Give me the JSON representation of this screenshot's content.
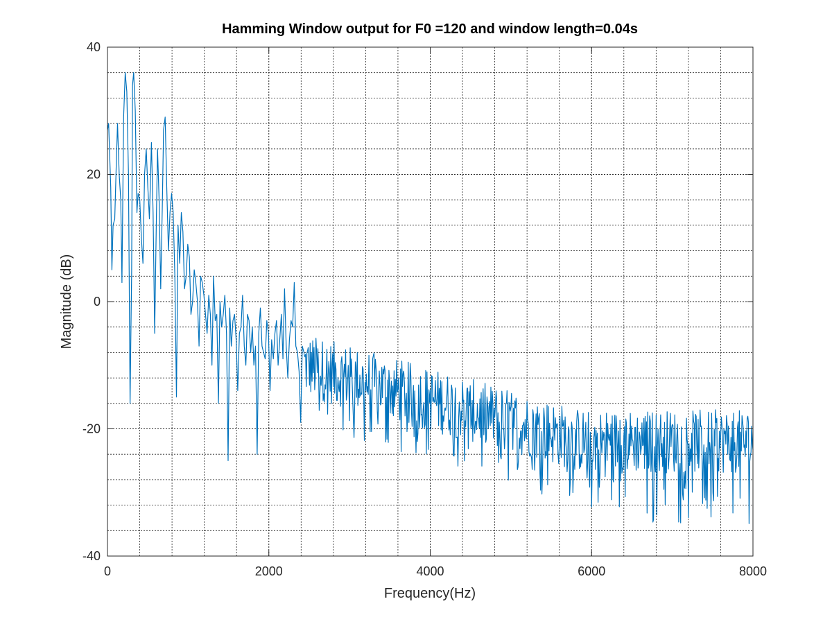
{
  "chart_data": {
    "type": "line",
    "title": "Hamming Window output for F0 =120 and window length=0.04s",
    "xlabel": "Frequency(Hz)",
    "ylabel": "Magnitude (dB)",
    "xlim": [
      0,
      8000
    ],
    "ylim": [
      -40,
      40
    ],
    "x_major_ticks": [
      0,
      2000,
      4000,
      6000,
      8000
    ],
    "x_major_tick_labels": [
      "0",
      "2000",
      "4000",
      "6000",
      "8000"
    ],
    "y_major_ticks": [
      -40,
      -20,
      0,
      20,
      40
    ],
    "y_major_tick_labels": [
      "-40",
      "-20",
      "0",
      "20",
      "40"
    ],
    "x_minor_step": 400,
    "y_minor_step": 4,
    "grid": true,
    "legend": "none",
    "series": [
      {
        "color": "#0072BD",
        "x": [
          0,
          15,
          40,
          55,
          70,
          90,
          110,
          125,
          145,
          165,
          180,
          200,
          220,
          240,
          260,
          280,
          300,
          310,
          325,
          345,
          365,
          380,
          400,
          420,
          440,
          460,
          480,
          500,
          520,
          545,
          565,
          585,
          605,
          620,
          640,
          660,
          680,
          695,
          715,
          735,
          755,
          775,
          795,
          815,
          835,
          855,
          875,
          895,
          915,
          935,
          955,
          975,
          995,
          1015,
          1035,
          1055,
          1075,
          1095,
          1115,
          1135,
          1155,
          1175,
          1195,
          1215,
          1235,
          1255,
          1275,
          1295,
          1315,
          1335,
          1355,
          1375,
          1395,
          1415,
          1435,
          1455,
          1475,
          1495,
          1515,
          1535,
          1555,
          1575,
          1595,
          1615,
          1635,
          1655,
          1675,
          1695,
          1715,
          1735,
          1755,
          1775,
          1795,
          1815,
          1835,
          1855,
          1875,
          1895,
          1915,
          1935,
          1955,
          1975,
          1995,
          2015,
          2035,
          2055,
          2075,
          2095,
          2115,
          2135,
          2155,
          2175,
          2195,
          2215,
          2235,
          2255,
          2275,
          2295,
          2315,
          2335,
          2355,
          2375,
          2395,
          2415,
          2435
        ],
        "y": [
          27,
          28,
          18,
          5,
          12,
          13,
          22,
          28,
          20,
          16,
          3,
          29,
          36,
          33,
          20,
          -16,
          5,
          34,
          36,
          30,
          14,
          17,
          16,
          10,
          6,
          20,
          24,
          18,
          13,
          25,
          14,
          -5,
          12,
          24,
          16,
          2,
          15,
          27,
          29,
          18,
          8,
          14,
          17,
          14,
          4,
          -15,
          12,
          6,
          14,
          11,
          2,
          4,
          9,
          7,
          -2,
          0,
          5,
          3,
          0,
          -7,
          4,
          3,
          1,
          -2,
          -5,
          1,
          -2,
          -10,
          4,
          -3,
          -2,
          -16,
          0,
          -4,
          -2,
          1,
          -5,
          -25,
          -1,
          -7,
          -3,
          -2,
          -6,
          -14,
          -5,
          -4,
          1,
          -7,
          -10,
          -2,
          -3,
          -8,
          -4,
          -10,
          -7,
          -24,
          -5,
          -1,
          -7,
          -8,
          -9,
          -3,
          -5,
          -14,
          -6,
          -9,
          -5,
          -3,
          -10,
          -6,
          -2,
          -9,
          2,
          -7,
          -12,
          -6,
          -3,
          -4,
          3,
          -7,
          -8,
          -11,
          -19,
          -7,
          -8
        ]
      }
    ],
    "noise_band": {
      "x_start": 2440,
      "x_end": 8000,
      "upper_db": [
        -4,
        -16
      ],
      "lower_db": [
        -20,
        -35
      ]
    }
  }
}
